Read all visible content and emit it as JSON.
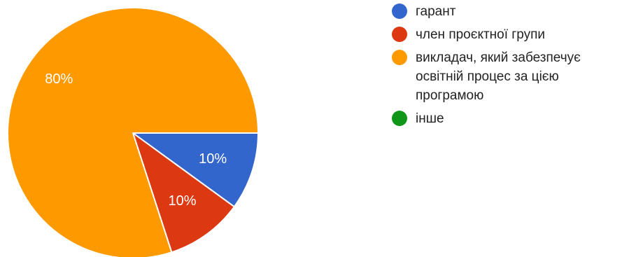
{
  "chart_data": {
    "type": "pie",
    "title": "",
    "slices": [
      {
        "label": "гарант",
        "value": 10,
        "display": "10%",
        "color": "#3366cc"
      },
      {
        "label": "член проєктної групи",
        "value": 10,
        "display": "10%",
        "color": "#dc3912"
      },
      {
        "label": "викладач, який забезпечує освітній процес за цією програмою",
        "value": 80,
        "display": "80%",
        "color": "#ff9900"
      },
      {
        "label": "інше",
        "value": 0,
        "display": "",
        "color": "#109618"
      }
    ],
    "start_angle_deg": 90,
    "direction": "clockwise",
    "legend_position": "right"
  }
}
